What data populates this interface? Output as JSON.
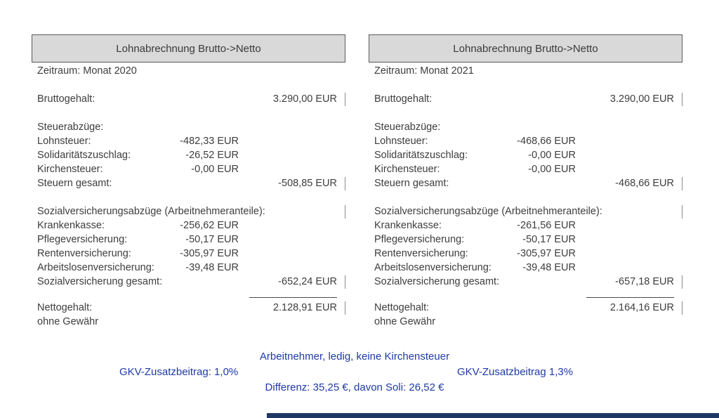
{
  "colors": {
    "header_bg": "#d9d9d9",
    "panel_border": "#595959",
    "accent_blue": "#1f3aa5",
    "bottom_bar": "#1f3864",
    "tick": "#8a8a8a"
  },
  "panels": [
    {
      "title": "Lohnabrechnung Brutto->Netto",
      "period": "Zeitraum: Monat 2020",
      "gross": {
        "label": "Bruttogehalt:",
        "total": "3.290,00 EUR"
      },
      "tax_header": "Steuerabzüge:",
      "tax": [
        {
          "label": "Lohnsteuer:",
          "value": "-482,33 EUR"
        },
        {
          "label": "Solidaritätszuschlag:",
          "value": "-26,52 EUR"
        },
        {
          "label": "Kirchensteuer:",
          "value": "-0,00 EUR"
        }
      ],
      "tax_total": {
        "label": "Steuern gesamt:",
        "total": "-508,85 EUR"
      },
      "social_header": "Sozialversicherungsabzüge (Arbeitnehmeranteile):",
      "social": [
        {
          "label": "Krankenkasse:",
          "value": "-256,62 EUR"
        },
        {
          "label": "Pflegeversicherung:",
          "value": "-50,17 EUR"
        },
        {
          "label": "Rentenversicherung:",
          "value": "-305,97 EUR"
        },
        {
          "label": "Arbeitslosenversicherung:",
          "value": "-39,48 EUR"
        }
      ],
      "social_total": {
        "label": "Sozialversicherung gesamt:",
        "total": "-652,24 EUR"
      },
      "net": {
        "label": "Nettogehalt:",
        "total": "2.128,91 EUR"
      },
      "disclaimer": "ohne Gewähr"
    },
    {
      "title": "Lohnabrechnung Brutto->Netto",
      "period": "Zeitraum: Monat 2021",
      "gross": {
        "label": "Bruttogehalt:",
        "total": "3.290,00 EUR"
      },
      "tax_header": "Steuerabzüge:",
      "tax": [
        {
          "label": "Lohnsteuer:",
          "value": "-468,66 EUR"
        },
        {
          "label": "Solidaritätszuschlag:",
          "value": "-0,00 EUR"
        },
        {
          "label": "Kirchensteuer:",
          "value": "-0,00 EUR"
        }
      ],
      "tax_total": {
        "label": "Steuern gesamt:",
        "total": "-468,66 EUR"
      },
      "social_header": "Sozialversicherungsabzüge (Arbeitnehmeranteile):",
      "social": [
        {
          "label": "Krankenkasse:",
          "value": "-261,56 EUR"
        },
        {
          "label": "Pflegeversicherung:",
          "value": "-50,17 EUR"
        },
        {
          "label": "Rentenversicherung:",
          "value": "-305,97 EUR"
        },
        {
          "label": "Arbeitslosenversicherung:",
          "value": "-39,48 EUR"
        }
      ],
      "social_total": {
        "label": "Sozialversicherung gesamt:",
        "total": "-657,18 EUR"
      },
      "net": {
        "label": "Nettogehalt:",
        "total": "2.164,16 EUR"
      },
      "disclaimer": "ohne Gewähr"
    }
  ],
  "footer": {
    "line1": "Arbeitnehmer, ledig, keine Kirchensteuer",
    "gkv_left": "GKV-Zusatzbeitrag: 1,0%",
    "gkv_right": "GKV-Zusatzbeitrag 1,3%",
    "line3": "Differenz: 35,25 €, davon Soli: 26,52 €"
  }
}
